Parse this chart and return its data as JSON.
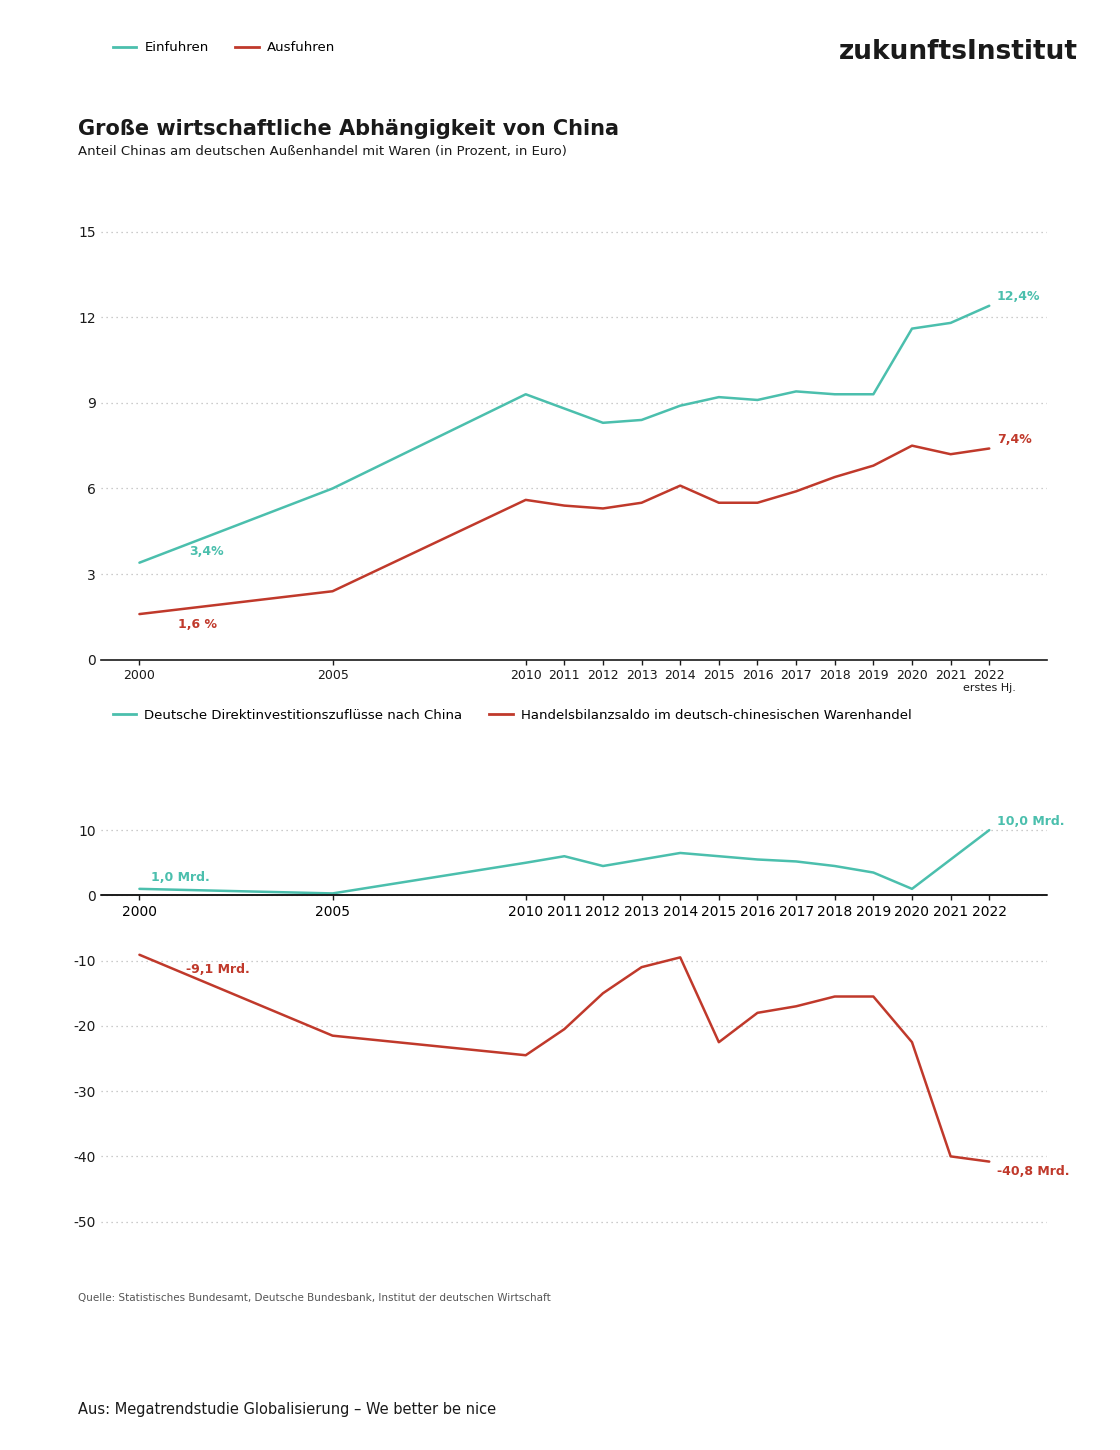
{
  "title": "Große wirtschaftliche Abhängigkeit von China",
  "subtitle": "Anteil Chinas am deutschen Außenhandel mit Waren (in Prozent, in Euro)",
  "logo_text_light": "zukunfts",
  "logo_text_bold": "Institut",
  "source_text": "Quelle: Statistisches Bundesamt, Deutsche Bundesbank, Institut der deutschen Wirtschaft",
  "footer_text": "Aus: Megatrendstudie Globalisierung – We better be nice",
  "chart1": {
    "legend_einfuhren": "Einfuhren",
    "legend_ausfuhren": "Ausfuhren",
    "color_einfuhren": "#4bbfad",
    "color_ausfuhren": "#c0392b",
    "x_values": [
      2000,
      2005,
      2010,
      2011,
      2012,
      2013,
      2014,
      2015,
      2016,
      2017,
      2018,
      2019,
      2020,
      2021,
      2022
    ],
    "einfuhren": [
      3.4,
      6.0,
      9.3,
      8.8,
      8.3,
      8.4,
      8.9,
      9.2,
      9.1,
      9.4,
      9.3,
      9.3,
      11.6,
      11.8,
      12.4
    ],
    "ausfuhren": [
      1.6,
      2.4,
      5.6,
      5.4,
      5.3,
      5.5,
      6.1,
      5.5,
      5.5,
      5.9,
      6.4,
      6.8,
      7.5,
      7.2,
      7.4
    ],
    "ylim": [
      0,
      16
    ],
    "yticks": [
      0,
      3,
      6,
      9,
      12,
      15
    ],
    "annotation_einfuhren_start": "3,4%",
    "annotation_ausfuhren_start": "1,6 %",
    "annotation_einfuhren_end": "12,4%",
    "annotation_ausfuhren_end": "7,4%"
  },
  "chart2": {
    "legend_invest": "Deutsche Direktinvestitionszuflüsse nach China",
    "legend_handel": "Handelsbilanzsaldo im deutsch-chinesischen Warenhandel",
    "color_invest": "#4bbfad",
    "color_handel": "#c0392b",
    "x_values": [
      2000,
      2005,
      2010,
      2011,
      2012,
      2013,
      2014,
      2015,
      2016,
      2017,
      2018,
      2019,
      2020,
      2021,
      2022
    ],
    "invest": [
      1.0,
      0.3,
      5.0,
      6.0,
      4.5,
      5.5,
      6.5,
      6.0,
      5.5,
      5.2,
      4.5,
      3.5,
      1.0,
      5.5,
      10.0
    ],
    "handel": [
      -9.1,
      -21.5,
      -24.5,
      -20.5,
      -15.0,
      -11.0,
      -9.5,
      -22.5,
      -18.0,
      -17.0,
      -15.5,
      -15.5,
      -22.5,
      -40.0,
      -40.8
    ],
    "ylim": [
      -55,
      15
    ],
    "yticks": [
      -50,
      -40,
      -30,
      -20,
      -10,
      0,
      10
    ],
    "annotation_invest_start": "1,0 Mrd.",
    "annotation_handel_start": "-9,1 Mrd.",
    "annotation_invest_end": "10,0 Mrd.",
    "annotation_handel_end": "-40,8 Mrd."
  },
  "bg_color": "#ffffff",
  "text_color": "#1a1a1a",
  "grid_color": "#aaaaaa",
  "axis_color": "#1a1a1a"
}
